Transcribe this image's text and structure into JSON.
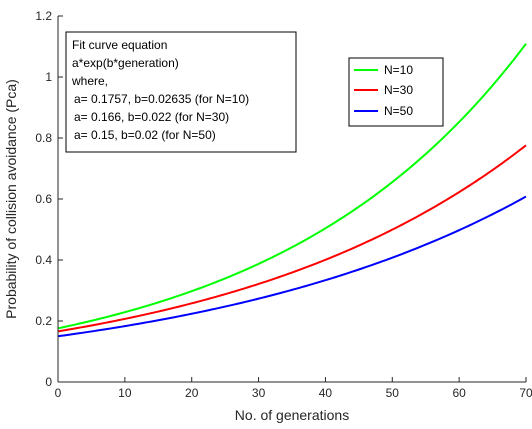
{
  "chart_data": {
    "type": "line",
    "title": "",
    "xlabel": "No. of generations",
    "ylabel": "Probability of collision avoidance (Pca)",
    "xlim": [
      0,
      70
    ],
    "ylim": [
      0,
      1.2
    ],
    "x_ticks": [
      "0",
      "10",
      "20",
      "30",
      "40",
      "50",
      "60",
      "70"
    ],
    "y_ticks": [
      "0",
      "0.2",
      "0.4",
      "0.6",
      "0.8",
      "1",
      "1.2"
    ],
    "grid": false,
    "legend_position": "top-right",
    "x": [
      0,
      10,
      20,
      30,
      40,
      50,
      60,
      70
    ],
    "series": [
      {
        "name": "N=10",
        "color": "#00ff00",
        "values": [
          0.176,
          0.228,
          0.297,
          0.387,
          0.504,
          0.655,
          0.852,
          1.109
        ]
      },
      {
        "name": "N=30",
        "color": "#ff0000",
        "values": [
          0.166,
          0.207,
          0.258,
          0.322,
          0.401,
          0.5,
          0.623,
          0.776
        ]
      },
      {
        "name": "N=50",
        "color": "#0000ff",
        "values": [
          0.15,
          0.183,
          0.224,
          0.273,
          0.334,
          0.408,
          0.498,
          0.608
        ]
      }
    ],
    "annotation": {
      "lines": [
        "Fit curve equation",
        "a*exp(b*generation)",
        "where,",
        "a= 0.1757, b=0.02635 (for N=10)",
        "a= 0.166, b=0.022 (for N=30)",
        "a= 0.15, b=0.02 (for N=50)"
      ]
    }
  }
}
